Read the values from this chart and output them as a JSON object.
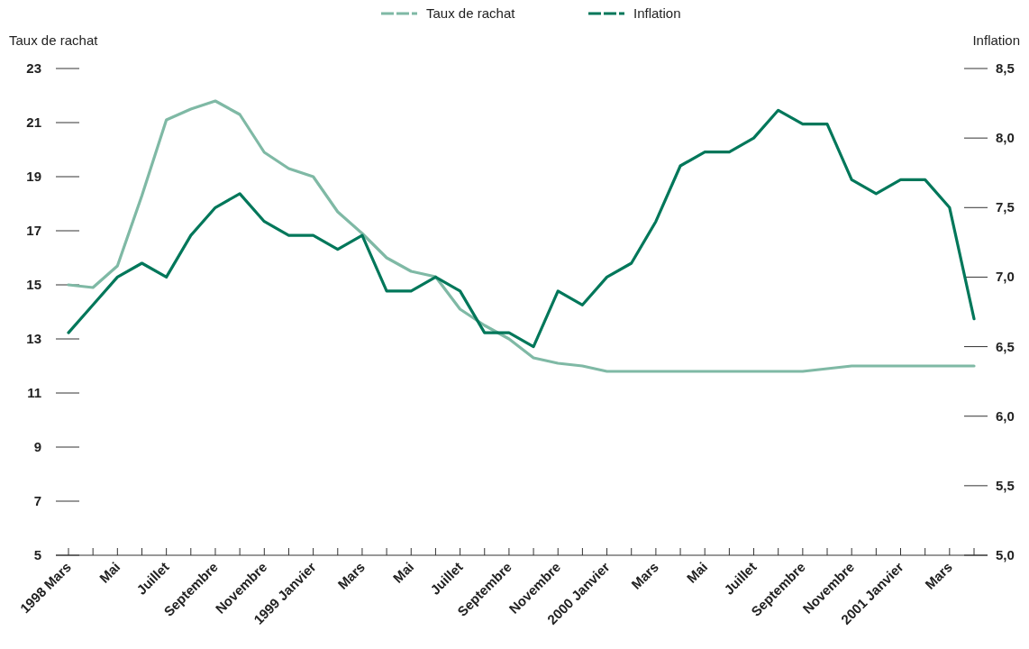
{
  "chart_data": {
    "type": "line",
    "ylabel": "Taux de rachat",
    "y2label": "Inflation",
    "legend": "top",
    "categories": [
      "1998 Mars",
      null,
      "Mai",
      null,
      "Juillet",
      null,
      "Septembre",
      null,
      "Novembre",
      null,
      "1999 Janvier",
      null,
      "Mars",
      null,
      "Mai",
      null,
      "Juillet",
      null,
      "Septembre",
      null,
      "Novembre",
      null,
      "2000 Janvier",
      null,
      "Mars",
      null,
      "Mai",
      null,
      "Juillet",
      null,
      "Septembre",
      null,
      "Novembre",
      null,
      "2001 Janvier",
      null,
      "Mars",
      null
    ],
    "series": [
      {
        "name": "Taux de rachat",
        "color": "#7fb9a5",
        "values": [
          15.0,
          14.9,
          15.7,
          18.3,
          21.1,
          21.5,
          21.8,
          21.3,
          19.9,
          19.3,
          19.0,
          17.7,
          16.9,
          16.0,
          15.5,
          15.3,
          14.1,
          13.5,
          13.0,
          12.3,
          12.1,
          12.0,
          11.8,
          11.8,
          11.8,
          11.8,
          11.8,
          11.8,
          11.8,
          11.8,
          11.8,
          11.9,
          12.0,
          12.0,
          12.0,
          12.0,
          12.0,
          12.0
        ]
      },
      {
        "name": "Inflation",
        "color": "#00775a",
        "axis": "y2",
        "values": [
          6.6,
          6.8,
          7.0,
          7.1,
          7.0,
          7.3,
          7.5,
          7.6,
          7.4,
          7.3,
          7.3,
          7.2,
          7.3,
          6.9,
          6.9,
          7.0,
          6.9,
          6.6,
          6.6,
          6.5,
          6.9,
          6.8,
          7.0,
          7.1,
          7.4,
          7.8,
          7.9,
          7.9,
          8.0,
          8.2,
          8.1,
          8.1,
          7.7,
          7.6,
          7.7,
          7.7,
          7.5,
          6.7
        ]
      }
    ],
    "ylim": [
      5,
      23
    ],
    "yticks": [
      5,
      7,
      9,
      11,
      13,
      15,
      17,
      19,
      21,
      23
    ],
    "y2lim": [
      5,
      8.5
    ],
    "y2ticks": [
      {
        "value": 5,
        "label": "5,0"
      },
      {
        "value": 5.5,
        "label": "5,5"
      },
      {
        "value": 6,
        "label": "6,0"
      },
      {
        "value": 6.5,
        "label": "6,5"
      },
      {
        "value": 7,
        "label": "7,0"
      },
      {
        "value": 7.5,
        "label": "7,5"
      },
      {
        "value": 8,
        "label": "8,0"
      },
      {
        "value": 8.5,
        "label": "8,5"
      }
    ]
  }
}
